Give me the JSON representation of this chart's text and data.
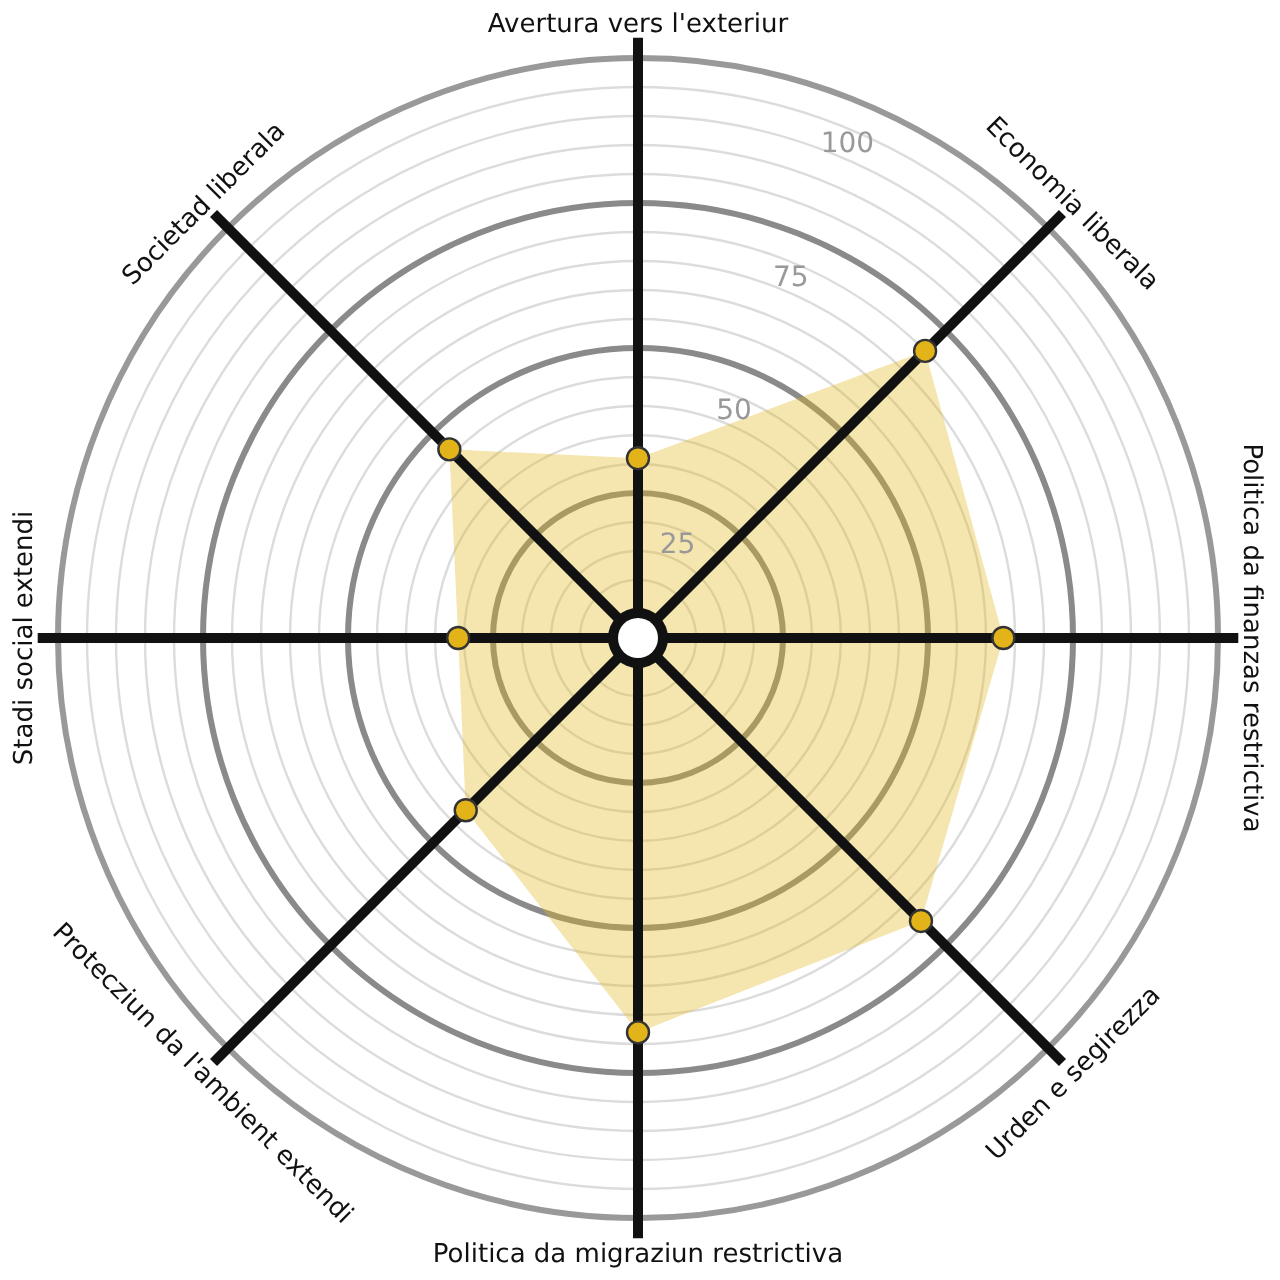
{
  "chart_data": {
    "type": "radar",
    "categories": [
      "Avertura vers l'exteriur",
      "Economia liberala",
      "Politica da finanzas restrictiva",
      "Urden e segirezza",
      "Politica da migraziun restrictiva",
      "Protecziun da l'ambient extendi",
      "Stadi social extendi",
      "Societad liberala"
    ],
    "series": [
      {
        "color": "#e2b419",
        "values": [
          31,
          70,
          63,
          69,
          68,
          42,
          31,
          46
        ]
      }
    ],
    "ylim": [
      0,
      100
    ],
    "yticks": [
      25,
      50,
      75,
      100
    ],
    "grid": true,
    "marker": "circle"
  }
}
